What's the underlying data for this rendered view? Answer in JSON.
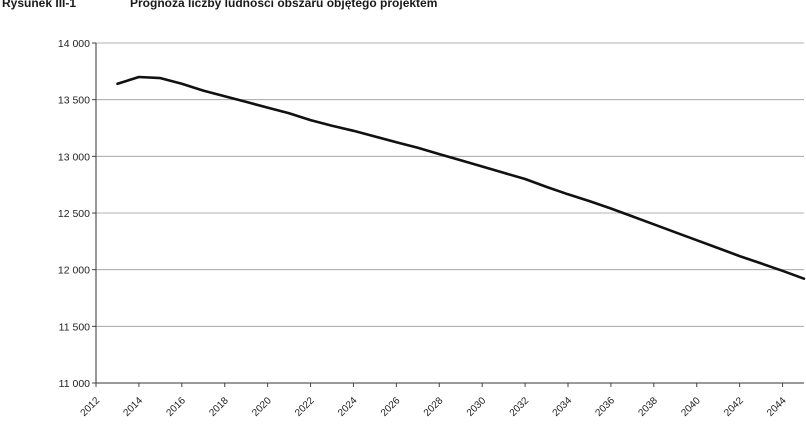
{
  "figure": {
    "label": "Rysunek III-1",
    "title": "Prognoza liczby ludności obszaru objętego projektem"
  },
  "chart_data": {
    "type": "line",
    "title": "Prognoza liczby ludności obszaru objętego projektem",
    "xlabel": "",
    "ylabel": "",
    "ylim": [
      11000,
      14000
    ],
    "xlim": [
      2012,
      2045
    ],
    "grid": true,
    "legend": "none",
    "y_ticks": [
      "14 000",
      "13 500",
      "13 000",
      "12 500",
      "12 000",
      "11 500",
      "11 000"
    ],
    "x_ticks": [
      "2012",
      "2014",
      "2016",
      "2018",
      "2020",
      "2022",
      "2024",
      "2026",
      "2028",
      "2030",
      "2032",
      "2034",
      "2036",
      "2038",
      "2040",
      "2042",
      "2044"
    ],
    "series": [
      {
        "color": "#111111",
        "x": [
          2013,
          2014,
          2015,
          2016,
          2017,
          2018,
          2019,
          2020,
          2021,
          2022,
          2023,
          2024,
          2025,
          2026,
          2027,
          2028,
          2029,
          2030,
          2031,
          2032,
          2033,
          2034,
          2035,
          2036,
          2037,
          2038,
          2039,
          2040,
          2041,
          2042,
          2043,
          2044,
          2045
        ],
        "y": [
          13640,
          13700,
          13690,
          13640,
          13580,
          13530,
          13480,
          13430,
          13380,
          13320,
          13270,
          13225,
          13175,
          13125,
          13075,
          13020,
          12965,
          12910,
          12855,
          12800,
          12730,
          12665,
          12605,
          12540,
          12470,
          12400,
          12330,
          12260,
          12190,
          12120,
          12055,
          11990,
          11920
        ]
      }
    ]
  }
}
